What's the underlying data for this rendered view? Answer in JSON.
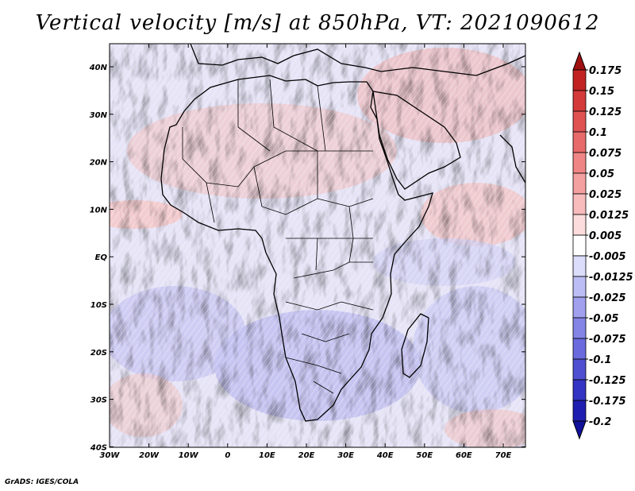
{
  "title": "Vertical velocity [m/s] at 850hPa, VT: 2021090612",
  "credit": "GrADS: IGES/COLA",
  "map": {
    "lon_range": [
      -30,
      75
    ],
    "lat_range": [
      -40,
      45
    ],
    "lon_ticks": [
      "30W",
      "20W",
      "10W",
      "0",
      "10E",
      "20E",
      "30E",
      "40E",
      "50E",
      "60E",
      "70E"
    ],
    "lat_ticks": [
      "40N",
      "30N",
      "20N",
      "10N",
      "EQ",
      "10S",
      "20S",
      "30S",
      "40S"
    ]
  },
  "colorbar": {
    "labels": [
      "0.175",
      "0.15",
      "0.125",
      "0.1",
      "0.075",
      "0.05",
      "0.025",
      "0.0125",
      "0.005",
      "-0.005",
      "-0.0125",
      "-0.025",
      "-0.05",
      "-0.075",
      "-0.1",
      "-0.125",
      "-0.175",
      "-0.2"
    ],
    "colors": [
      "#a01010",
      "#c22222",
      "#d43a3a",
      "#e05252",
      "#e86a6a",
      "#f08585",
      "#f5a0a0",
      "#f8bcbc",
      "#fcdcdc",
      "#ffffff",
      "#dcdcfb",
      "#bdbdf5",
      "#a0a0ee",
      "#8484e6",
      "#6a6ade",
      "#4f4fd2",
      "#3333c4",
      "#1e1eb0",
      "#10109a"
    ]
  }
}
